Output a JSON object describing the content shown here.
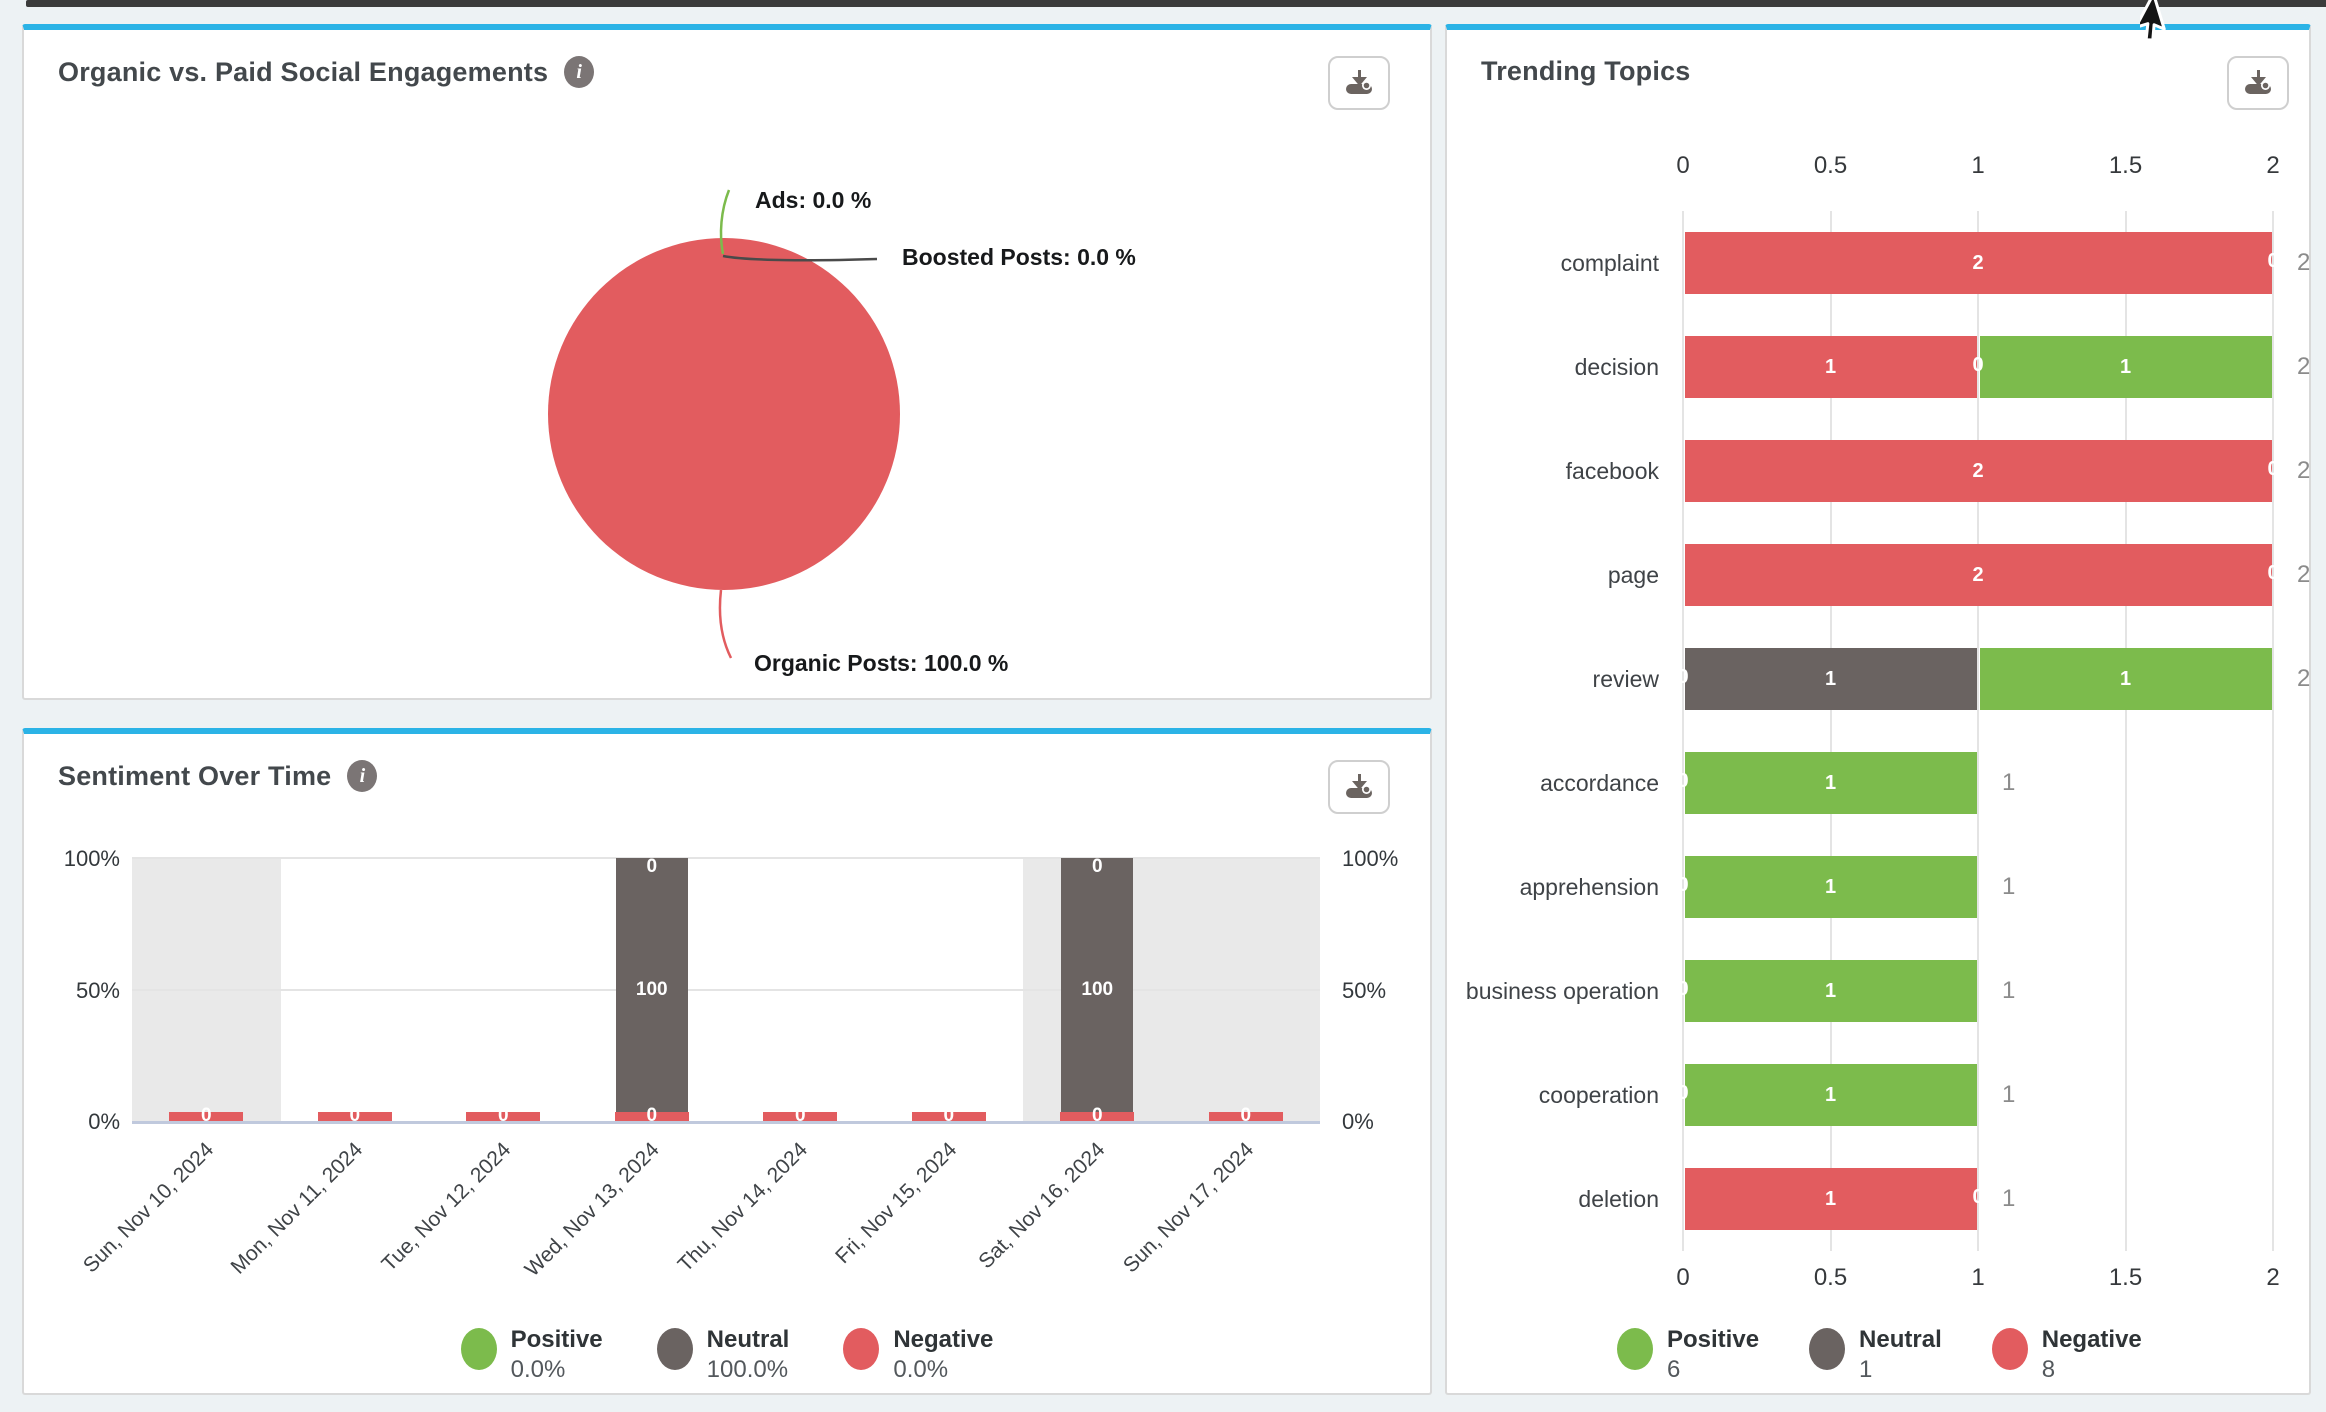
{
  "colors": {
    "positive": "#7cbb4c",
    "neutral": "#6a6361",
    "negative": "#e25c5f",
    "accent_blue": "#2bb3e6",
    "weekend_band": "#e9e9e9",
    "gridline": "#e4e4e4",
    "baseline": "#c0c9dd"
  },
  "icons": {
    "info_glyph": "i"
  },
  "panels": {
    "engagements": {
      "title": "Organic vs. Paid Social Engagements"
    },
    "sentiment": {
      "title": "Sentiment Over Time"
    },
    "topics": {
      "title": "Trending Topics"
    }
  },
  "chart_data": [
    {
      "type": "pie",
      "title": "Organic vs. Paid Social Engagements",
      "slices": [
        {
          "label": "Ads",
          "value_pct": 0.0,
          "color": "#7cbb4c",
          "text": "Ads: 0.0 %"
        },
        {
          "label": "Boosted Posts",
          "value_pct": 0.0,
          "color": "#4a4a4a",
          "text": "Boosted Posts: 0.0 %"
        },
        {
          "label": "Organic Posts",
          "value_pct": 100.0,
          "color": "#e25c5f",
          "text": "Organic Posts: 100.0 %"
        }
      ]
    },
    {
      "type": "bar",
      "orientation": "vertical",
      "stacked": true,
      "unit": "percent",
      "title": "Sentiment Over Time",
      "categories": [
        "Sun, Nov 10, 2024",
        "Mon, Nov 11, 2024",
        "Tue, Nov 12, 2024",
        "Wed, Nov 13, 2024",
        "Thu, Nov 14, 2024",
        "Fri, Nov 15, 2024",
        "Sat, Nov 16, 2024",
        "Sun, Nov 17, 2024"
      ],
      "series": [
        {
          "name": "Positive",
          "color": "#7cbb4c",
          "values": [
            0,
            0,
            0,
            0,
            0,
            0,
            0,
            0
          ]
        },
        {
          "name": "Neutral",
          "color": "#6a6361",
          "values": [
            0,
            0,
            0,
            100,
            0,
            0,
            100,
            0
          ]
        },
        {
          "name": "Negative",
          "color": "#e25c5f",
          "values": [
            0,
            0,
            0,
            0,
            0,
            0,
            0,
            0
          ]
        }
      ],
      "ylim": [
        0,
        100
      ],
      "y_ticks": [
        "100%",
        "50%",
        "0%"
      ],
      "weekend_band_indices": [
        0,
        6,
        7
      ],
      "legend": [
        {
          "name": "Positive",
          "value": "0.0%"
        },
        {
          "name": "Neutral",
          "value": "100.0%"
        },
        {
          "name": "Negative",
          "value": "0.0%"
        }
      ]
    },
    {
      "type": "bar",
      "orientation": "horizontal",
      "stacked": true,
      "title": "Trending Topics",
      "xlim": [
        0,
        2
      ],
      "x_ticks": [
        "0",
        "0.5",
        "1",
        "1.5",
        "2"
      ],
      "rows": [
        {
          "label": "complaint",
          "segments": [
            {
              "sentiment": "negative",
              "value": 2
            }
          ],
          "zero_label_at": 2,
          "total": 2
        },
        {
          "label": "decision",
          "segments": [
            {
              "sentiment": "negative",
              "value": 1
            },
            {
              "sentiment": "positive",
              "value": 1
            }
          ],
          "zero_label_at": 1,
          "total": 2
        },
        {
          "label": "facebook",
          "segments": [
            {
              "sentiment": "negative",
              "value": 2
            }
          ],
          "zero_label_at": 2,
          "total": 2
        },
        {
          "label": "page",
          "segments": [
            {
              "sentiment": "negative",
              "value": 2
            }
          ],
          "zero_label_at": 2,
          "total": 2
        },
        {
          "label": "review",
          "segments": [
            {
              "sentiment": "neutral",
              "value": 1
            },
            {
              "sentiment": "positive",
              "value": 1
            }
          ],
          "zero_label_at": 0,
          "total": 2
        },
        {
          "label": "accordance",
          "segments": [
            {
              "sentiment": "positive",
              "value": 1
            }
          ],
          "zero_label_at": 0,
          "total": 1
        },
        {
          "label": "apprehension",
          "segments": [
            {
              "sentiment": "positive",
              "value": 1
            }
          ],
          "zero_label_at": 0,
          "total": 1
        },
        {
          "label": "business operation",
          "segments": [
            {
              "sentiment": "positive",
              "value": 1
            }
          ],
          "zero_label_at": 0,
          "total": 1
        },
        {
          "label": "cooperation",
          "segments": [
            {
              "sentiment": "positive",
              "value": 1
            }
          ],
          "zero_label_at": 0,
          "total": 1
        },
        {
          "label": "deletion",
          "segments": [
            {
              "sentiment": "negative",
              "value": 1
            }
          ],
          "zero_label_at": 1,
          "total": 1
        }
      ],
      "legend": [
        {
          "name": "Positive",
          "value": "6"
        },
        {
          "name": "Neutral",
          "value": "1"
        },
        {
          "name": "Negative",
          "value": "8"
        }
      ]
    }
  ]
}
